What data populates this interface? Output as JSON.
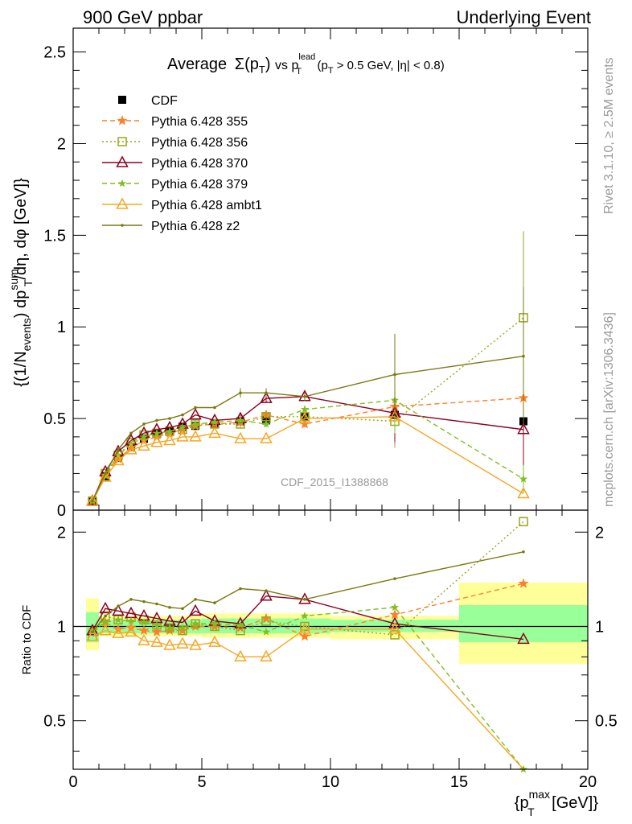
{
  "header": {
    "left": "900 GeV ppbar",
    "right": "Underlying Event"
  },
  "side": {
    "rivet": "Rivet 3.1.10, ≥ 2.5M events",
    "mcplots": "mcplots.cern.ch [arXiv:1306.3436]"
  },
  "plot_title": {
    "prefix": "Average",
    "sigma": "Σ(p",
    "sigma_sub": "T",
    "sigma_close": ")",
    "vs": " vs p",
    "lead_sup": "lead",
    "lead_sub": "T",
    "cut_a": " (p",
    "cut_sub": "T",
    "cut_b": " > 0.5 GeV, |η| < 0.8)"
  },
  "watermark": "CDF_2015_I1388868",
  "y_axis_label": {
    "a": "{(1/N",
    "a_sub": "events",
    "b": ") dp",
    "b_sup": "sum",
    "b_sub": "T",
    "c": "/dη, dφ [GeV]}"
  },
  "ratio_axis_label": "Ratio to CDF",
  "x_axis_label": {
    "a": "{p",
    "sup": "max",
    "sub": "T",
    "b": " [GeV]}"
  },
  "colors": {
    "cdf": "#000000",
    "p355": "#ff7f2a",
    "p356": "#9aa61e",
    "p370": "#8b0020",
    "p379": "#7fbf1f",
    "ambt1": "#f5a623",
    "z2": "#7a7a12",
    "band_inner": "#99ff99",
    "band_outer": "#ffff99"
  },
  "chart_data": {
    "type": "line",
    "x_bins": [
      0.75,
      1.25,
      1.75,
      2.25,
      2.75,
      3.25,
      3.75,
      4.25,
      4.75,
      5.5,
      6.5,
      7.5,
      9.0,
      12.5,
      17.5
    ],
    "xlim": [
      0,
      20
    ],
    "ylim_main": [
      0,
      2.63
    ],
    "ylim_ratio": [
      0.35,
      2.35
    ],
    "x_ticks": [
      0,
      5,
      10,
      15,
      20
    ],
    "y_ticks_main": [
      0.5,
      1,
      1.5,
      2,
      2.5
    ],
    "y_ticks_ratio": [
      0.5,
      1,
      2
    ],
    "series": [
      {
        "name": "CDF",
        "key": "cdf",
        "style": "data",
        "values": [
          0.052,
          0.185,
          0.285,
          0.345,
          0.39,
          0.415,
          0.435,
          0.455,
          0.46,
          0.47,
          0.485,
          0.49,
          0.51,
          0.52,
          0.485
        ]
      },
      {
        "name": "Pythia 6.428 355",
        "key": "p355",
        "style": "dashed",
        "marker": "star",
        "values": [
          0.05,
          0.19,
          0.28,
          0.34,
          0.38,
          0.4,
          0.42,
          0.44,
          0.46,
          0.47,
          0.48,
          0.52,
          0.47,
          0.565,
          0.612
        ]
      },
      {
        "name": "Pythia 6.428 356",
        "key": "p356",
        "style": "dotted",
        "marker": "square",
        "values": [
          0.048,
          0.2,
          0.3,
          0.37,
          0.41,
          0.42,
          0.43,
          0.44,
          0.47,
          0.47,
          0.47,
          0.51,
          0.51,
          0.485,
          1.05
        ]
      },
      {
        "name": "Pythia 6.428 370",
        "key": "p370",
        "style": "solid",
        "marker": "triangle",
        "values": [
          0.05,
          0.21,
          0.32,
          0.38,
          0.42,
          0.44,
          0.45,
          0.47,
          0.52,
          0.49,
          0.5,
          0.61,
          0.62,
          0.53,
          0.44
        ]
      },
      {
        "name": "Pythia 6.428 379",
        "key": "p379",
        "style": "dashed",
        "marker": "smallstar",
        "values": [
          0.05,
          0.19,
          0.3,
          0.36,
          0.4,
          0.42,
          0.43,
          0.45,
          0.47,
          0.48,
          0.49,
          0.47,
          0.55,
          0.6,
          0.17
        ]
      },
      {
        "name": "Pythia 6.428 ambt1",
        "key": "ambt1",
        "style": "solid",
        "marker": "triangle",
        "values": [
          0.048,
          0.18,
          0.27,
          0.33,
          0.35,
          0.37,
          0.38,
          0.4,
          0.4,
          0.42,
          0.39,
          0.39,
          0.5,
          0.51,
          0.09
        ]
      },
      {
        "name": "Pythia 6.428 z2",
        "key": "z2",
        "style": "solid",
        "marker": "dot",
        "values": [
          0.05,
          0.2,
          0.33,
          0.42,
          0.47,
          0.49,
          0.5,
          0.52,
          0.56,
          0.56,
          0.64,
          0.64,
          0.62,
          0.74,
          0.84
        ]
      }
    ],
    "ratio": {
      "ylabel": "Ratio to CDF",
      "band_bins": [
        {
          "x0": 0.5,
          "x1": 1.0,
          "inner": [
            0.89,
            1.11
          ],
          "outer": [
            0.84,
            1.23
          ]
        },
        {
          "x0": 1.0,
          "x1": 5.0,
          "inner": [
            0.95,
            1.05
          ],
          "outer": [
            0.93,
            1.08
          ]
        },
        {
          "x0": 5.0,
          "x1": 8.0,
          "inner": [
            0.95,
            1.06
          ],
          "outer": [
            0.92,
            1.1
          ]
        },
        {
          "x0": 8.0,
          "x1": 10.0,
          "inner": [
            0.95,
            1.06
          ],
          "outer": [
            0.92,
            1.1
          ]
        },
        {
          "x0": 10.0,
          "x1": 15.0,
          "inner": [
            0.96,
            1.05
          ],
          "outer": [
            0.91,
            1.08
          ]
        },
        {
          "x0": 15.0,
          "x1": 20.0,
          "inner": [
            0.89,
            1.17
          ],
          "outer": [
            0.76,
            1.38
          ]
        }
      ],
      "series": [
        {
          "key": "p355",
          "values": [
            0.97,
            1.03,
            0.98,
            0.99,
            0.97,
            0.96,
            0.97,
            0.97,
            1.0,
            1.0,
            0.99,
            1.06,
            0.93,
            1.09,
            1.37
          ]
        },
        {
          "key": "p356",
          "values": [
            0.93,
            1.08,
            1.05,
            1.07,
            1.05,
            1.01,
            0.99,
            0.97,
            1.02,
            1.0,
            0.97,
            1.04,
            1.0,
            0.94,
            2.16
          ]
        },
        {
          "key": "p370",
          "values": [
            0.97,
            1.14,
            1.12,
            1.1,
            1.08,
            1.06,
            1.04,
            1.03,
            1.12,
            1.04,
            1.02,
            1.25,
            1.22,
            1.02,
            0.91
          ]
        },
        {
          "key": "p379",
          "values": [
            0.97,
            1.03,
            1.05,
            1.04,
            1.03,
            1.01,
            0.99,
            0.99,
            1.02,
            1.02,
            1.01,
            0.96,
            1.08,
            1.15,
            0.35
          ]
        },
        {
          "key": "ambt1",
          "values": [
            0.93,
            0.97,
            0.95,
            0.96,
            0.9,
            0.89,
            0.87,
            0.88,
            0.87,
            0.89,
            0.8,
            0.8,
            0.98,
            0.98,
            0.19
          ]
        },
        {
          "key": "z2",
          "values": [
            0.96,
            1.08,
            1.16,
            1.22,
            1.2,
            1.18,
            1.15,
            1.14,
            1.22,
            1.19,
            1.32,
            1.3,
            1.22,
            1.42,
            1.73
          ]
        }
      ]
    }
  }
}
